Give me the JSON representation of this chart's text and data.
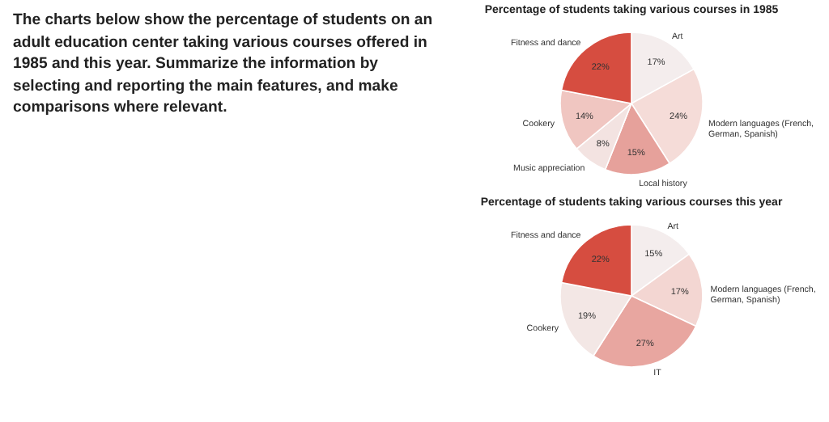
{
  "chart_data": [
    {
      "type": "other",
      "annotations": [
        "The charts below show the percentage of students on an adult education center taking various courses offered in 1985 and this year. Summarize the information by selecting and reporting the main features, and make comparisons where relevant."
      ]
    },
    {
      "type": "pie",
      "title": "Percentage of students taking various courses in 1985",
      "categories": [
        "Art",
        "Modern languages (French, German, Spanish)",
        "Local history",
        "Music appreciation",
        "Cookery",
        "Fitness and dance"
      ],
      "values": [
        17,
        24,
        15,
        8,
        14,
        22
      ],
      "value_labels": [
        "17%",
        "24%",
        "15%",
        "8%",
        "14%",
        "22%"
      ],
      "colors": [
        "#f4eded",
        "#f5dcd8",
        "#e6a19b",
        "#f3e3e1",
        "#f0c6c1",
        "#d64d40"
      ]
    },
    {
      "type": "pie",
      "title": "Percentage of students taking various courses this year",
      "categories": [
        "Art",
        "Modern languages (French, German, Spanish)",
        "IT",
        "Cookery",
        "Fitness and dance"
      ],
      "values": [
        15,
        17,
        27,
        19,
        22
      ],
      "value_labels": [
        "15%",
        "17%",
        "27%",
        "19%",
        "22%"
      ],
      "colors": [
        "#f4eded",
        "#f3d6d2",
        "#e8a6a0",
        "#f3e7e5",
        "#d64d40"
      ]
    }
  ]
}
